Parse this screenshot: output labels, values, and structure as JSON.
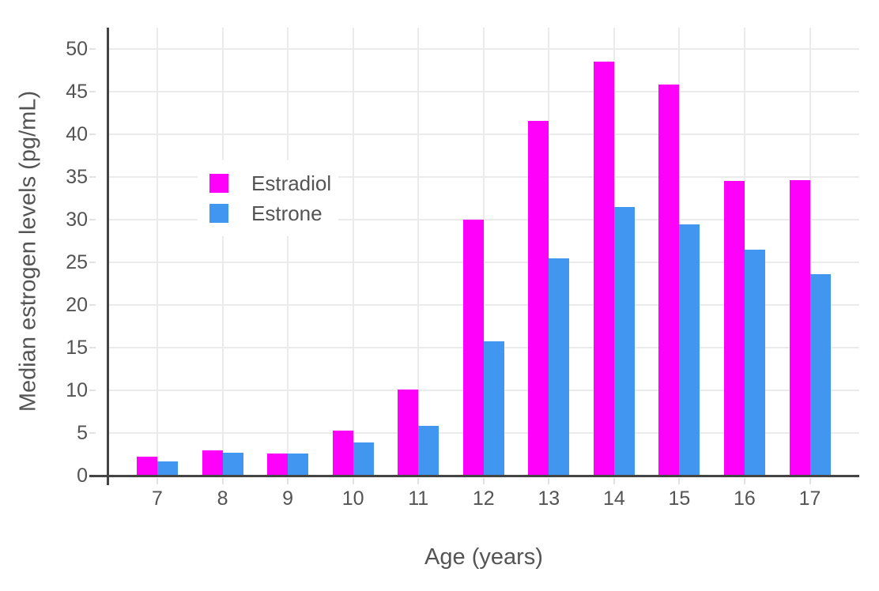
{
  "chart_data": {
    "type": "bar",
    "title": "",
    "xlabel": "Age (years)",
    "ylabel": "Median estrogen levels (pg/mL)",
    "categories": [
      7,
      8,
      9,
      10,
      11,
      12,
      13,
      14,
      15,
      16,
      17
    ],
    "series": [
      {
        "name": "Estradiol",
        "color": "#ff00fa",
        "values": [
          2.2,
          3.0,
          2.6,
          5.3,
          10.1,
          30.0,
          41.6,
          48.5,
          45.8,
          34.5,
          34.6
        ]
      },
      {
        "name": "Estrone",
        "color": "#4196f0",
        "values": [
          1.7,
          2.7,
          2.6,
          3.9,
          5.8,
          15.7,
          25.5,
          31.5,
          29.4,
          26.5,
          23.6
        ]
      }
    ],
    "ylim": [
      0,
      52.5
    ],
    "yticks": [
      0,
      5,
      10,
      15,
      20,
      25,
      30,
      35,
      40,
      45,
      50
    ],
    "grid": true,
    "legend_position": "inside-top-left",
    "colors": {
      "background": "#ffffff",
      "axis_line": "#444444",
      "gridline": "#ebebeb",
      "tickmark": "#e2e2e2",
      "text": "#545454"
    }
  }
}
